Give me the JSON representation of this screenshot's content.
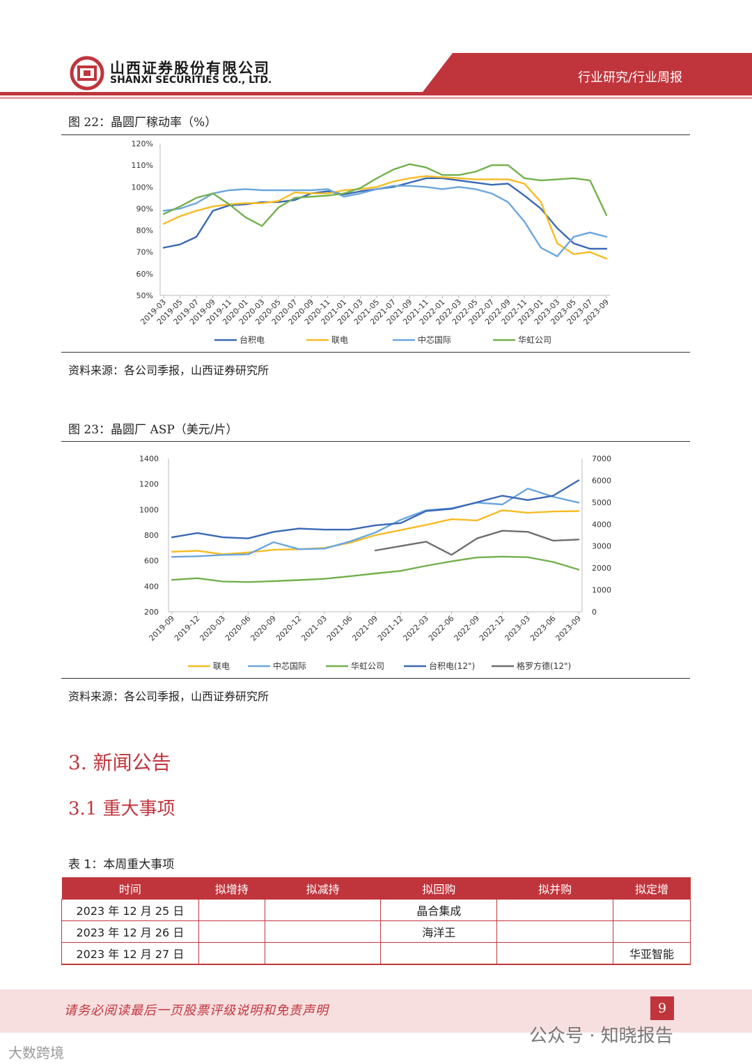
{
  "header": {
    "company_cn": "山西证券股份有限公司",
    "company_en": "SHANXI SECURITIES CO., LTD.",
    "tag": "行业研究/行业周报",
    "colors": {
      "brand": "#c0353c"
    }
  },
  "fig22": {
    "caption": "图 22：晶圆厂稼动率（%）",
    "source": "资料来源：各公司季报，山西证券研究所",
    "chart_data": {
      "type": "line",
      "x": [
        "2019-03",
        "2019-05",
        "2019-07",
        "2019-09",
        "2019-11",
        "2020-01",
        "2020-03",
        "2020-05",
        "2020-07",
        "2020-09",
        "2020-11",
        "2021-01",
        "2021-03",
        "2021-05",
        "2021-07",
        "2021-09",
        "2021-11",
        "2022-01",
        "2022-03",
        "2022-05",
        "2022-07",
        "2022-09",
        "2022-11",
        "2023-01",
        "2023-03",
        "2023-05",
        "2023-07",
        "2023-09"
      ],
      "ylim": [
        50,
        120
      ],
      "yticks": [
        "50%",
        "60%",
        "70%",
        "80%",
        "90%",
        "100%",
        "110%",
        "120%"
      ],
      "series": [
        {
          "name": "台积电",
          "color": "#3a68b5",
          "values": [
            72,
            73.5,
            77,
            89,
            91.5,
            92,
            93,
            93,
            94,
            97,
            98,
            96.5,
            98,
            99,
            100,
            102,
            104,
            104,
            103,
            102,
            101,
            101.5,
            96,
            90,
            81,
            74,
            71.5,
            71.5
          ]
        },
        {
          "name": "联电",
          "color": "#f6bb23",
          "values": [
            83,
            86.5,
            89,
            91,
            92,
            92.5,
            92.5,
            93.5,
            97.5,
            97,
            97,
            98.5,
            99,
            100,
            102.5,
            104,
            105,
            104.5,
            104,
            103.5,
            103.5,
            103.5,
            101.5,
            93,
            74,
            69,
            70,
            67
          ]
        },
        {
          "name": "中芯国际",
          "color": "#6aa5dd",
          "values": [
            89,
            90,
            92.5,
            97,
            98.5,
            99,
            98.5,
            98.5,
            98.5,
            98.5,
            99,
            95.5,
            97,
            99,
            100.5,
            100.5,
            100,
            99,
            100,
            99,
            97,
            93,
            84,
            72,
            68,
            77,
            79,
            77
          ]
        },
        {
          "name": "华虹公司",
          "color": "#73b04d",
          "values": [
            87.5,
            91,
            95,
            97,
            92,
            86,
            82,
            90.5,
            95,
            95.5,
            96,
            97,
            99.5,
            104,
            108,
            110.5,
            109,
            105.5,
            105.5,
            107,
            110,
            110,
            104,
            103,
            103.5,
            104,
            103,
            87
          ]
        }
      ]
    }
  },
  "fig23": {
    "caption": "图 23：晶圆厂 ASP（美元/片）",
    "source": "资料来源：各公司季报，山西证券研究所",
    "chart_data": {
      "type": "line",
      "x": [
        "2019-09",
        "2019-12",
        "2020-03",
        "2020-06",
        "2020-09",
        "2020-12",
        "2021-03",
        "2021-06",
        "2021-09",
        "2021-12",
        "2022-03",
        "2022-06",
        "2022-09",
        "2022-12",
        "2023-03",
        "2023-06",
        "2023-09"
      ],
      "ylim_left": [
        200,
        1400
      ],
      "ylim_right": [
        0,
        7000
      ],
      "yticks_left": [
        "200",
        "400",
        "600",
        "800",
        "1000",
        "1200",
        "1400"
      ],
      "yticks_right": [
        "0",
        "1000",
        "2000",
        "3000",
        "4000",
        "5000",
        "6000",
        "7000"
      ],
      "series": [
        {
          "name": "联电",
          "color": "#f6bb23",
          "axis": "left",
          "values": [
            670,
            678,
            650,
            665,
            685,
            690,
            700,
            740,
            800,
            840,
            880,
            925,
            915,
            995,
            975,
            985,
            988
          ]
        },
        {
          "name": "中芯国际",
          "color": "#6aa5dd",
          "axis": "left",
          "values": [
            630,
            635,
            645,
            650,
            745,
            690,
            695,
            750,
            820,
            920,
            995,
            1010,
            1055,
            1040,
            1165,
            1100,
            1055
          ]
        },
        {
          "name": "华虹公司",
          "color": "#73b04d",
          "axis": "left",
          "values": [
            450,
            463,
            437,
            433,
            440,
            448,
            458,
            478,
            500,
            520,
            560,
            595,
            625,
            632,
            627,
            590,
            530
          ]
        },
        {
          "name": "台积电(12\")",
          "color": "#3a68b5",
          "axis": "right",
          "values": [
            3400,
            3600,
            3400,
            3350,
            3650,
            3800,
            3750,
            3750,
            3950,
            4050,
            4600,
            4700,
            5000,
            5300,
            5100,
            5300,
            6000
          ]
        },
        {
          "name": "格罗方德(12\")",
          "color": "#6e6e6e",
          "axis": "right",
          "values": [
            null,
            null,
            null,
            null,
            null,
            null,
            null,
            null,
            2800,
            3000,
            3200,
            2600,
            3350,
            3700,
            3650,
            3250,
            3300
          ]
        }
      ]
    }
  },
  "section": {
    "h1": "3.  新闻公告",
    "h2": "3.1  重大事项"
  },
  "table1": {
    "caption": "表 1：本周重大事项",
    "headers": [
      "时间",
      "拟增持",
      "拟减持",
      "拟回购",
      "拟并购",
      "拟定增"
    ],
    "rows": [
      [
        "2023 年 12 月 25 日",
        "",
        "",
        "晶合集成",
        "",
        ""
      ],
      [
        "2023 年 12 月 26 日",
        "",
        "",
        "海洋王",
        "",
        ""
      ],
      [
        "2023 年 12 月 27 日",
        "",
        "",
        "",
        "",
        "华亚智能"
      ]
    ]
  },
  "footer": {
    "disclaimer": "请务必阅读最后一页股票评级说明和免责声明",
    "page": "9",
    "watermark1": "公众号 · 知晓报告",
    "watermark2": "大数跨境"
  }
}
